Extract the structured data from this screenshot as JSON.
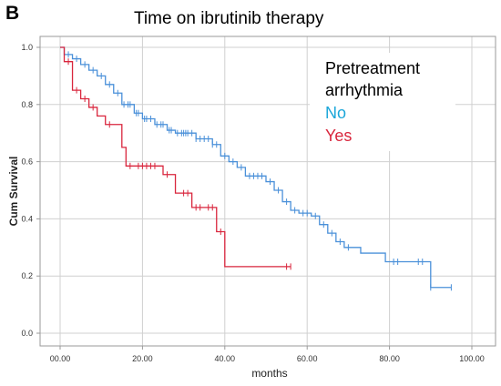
{
  "panel_letter": "B",
  "chart_data": {
    "type": "line",
    "title": "Time on ibrutinib therapy",
    "xlabel": "months",
    "ylabel": "Cum Survival",
    "xlim": [
      0,
      100
    ],
    "ylim": [
      0,
      1.0
    ],
    "x_ticks": [
      "00.00",
      "20.00",
      "40.00",
      "60.00",
      "80.00",
      "100.00"
    ],
    "y_ticks": [
      "0.0",
      "0.2",
      "0.4",
      "0.6",
      "0.8",
      "1.0"
    ],
    "grid": true,
    "legend": {
      "title_line1": "Pretreatment",
      "title_line2": "arrhythmia",
      "placement": "top-right"
    },
    "series": [
      {
        "name": "No",
        "color": "#4a90d9",
        "steps": [
          [
            0,
            1.0
          ],
          [
            1,
            0.975
          ],
          [
            3,
            0.96
          ],
          [
            5,
            0.94
          ],
          [
            7,
            0.92
          ],
          [
            9,
            0.9
          ],
          [
            11,
            0.87
          ],
          [
            13,
            0.84
          ],
          [
            15,
            0.8
          ],
          [
            18,
            0.77
          ],
          [
            20,
            0.75
          ],
          [
            23,
            0.73
          ],
          [
            26,
            0.71
          ],
          [
            28,
            0.7
          ],
          [
            33,
            0.68
          ],
          [
            37,
            0.66
          ],
          [
            39,
            0.62
          ],
          [
            41,
            0.6
          ],
          [
            43,
            0.58
          ],
          [
            45,
            0.55
          ],
          [
            50,
            0.53
          ],
          [
            52,
            0.5
          ],
          [
            54,
            0.46
          ],
          [
            56,
            0.43
          ],
          [
            58,
            0.42
          ],
          [
            61,
            0.41
          ],
          [
            63,
            0.38
          ],
          [
            65,
            0.35
          ],
          [
            67,
            0.32
          ],
          [
            69,
            0.3
          ],
          [
            73,
            0.28
          ],
          [
            79,
            0.25
          ],
          [
            90,
            0.16
          ],
          [
            95,
            0.16
          ]
        ],
        "censor_x": [
          2,
          4,
          6,
          8,
          10,
          12,
          14,
          15.5,
          16.5,
          17,
          18.5,
          19,
          20.5,
          21,
          22,
          23.5,
          24.5,
          25,
          26.5,
          27,
          28.5,
          29.5,
          30,
          30.5,
          31,
          32,
          33,
          34,
          35,
          36,
          37,
          38,
          40,
          42,
          44,
          46,
          47,
          48,
          49,
          51,
          53,
          55,
          57,
          59,
          60,
          62,
          64,
          66,
          68,
          70,
          81,
          82,
          87,
          88,
          90,
          95
        ]
      },
      {
        "name": "Yes",
        "color": "#d9263d",
        "steps": [
          [
            0,
            1.0
          ],
          [
            1,
            0.95
          ],
          [
            3,
            0.85
          ],
          [
            5,
            0.82
          ],
          [
            7,
            0.79
          ],
          [
            9,
            0.76
          ],
          [
            11,
            0.73
          ],
          [
            15,
            0.65
          ],
          [
            16,
            0.585
          ],
          [
            25,
            0.555
          ],
          [
            28,
            0.49
          ],
          [
            32,
            0.44
          ],
          [
            38,
            0.355
          ],
          [
            40,
            0.233
          ],
          [
            56,
            0.233
          ]
        ],
        "censor_x": [
          2,
          4,
          6,
          8,
          12,
          17,
          19,
          20,
          21,
          22,
          23,
          26,
          30,
          31,
          33,
          34,
          36,
          37,
          39,
          55,
          56
        ]
      }
    ]
  }
}
